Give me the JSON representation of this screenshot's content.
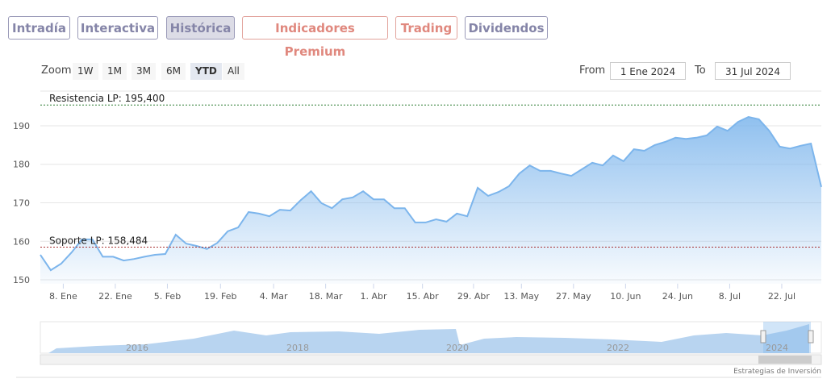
{
  "tabs": [
    "Intradía",
    "Interactiva",
    "Histórica",
    "Indicadores Premium",
    "Trading",
    "Dividendos"
  ],
  "active_tab": "Histórica",
  "zoom": {
    "label": "Zoom",
    "buttons": [
      "1W",
      "1M",
      "3M",
      "6M",
      "YTD",
      "All"
    ],
    "active": "YTD"
  },
  "range": {
    "from_label": "From",
    "from": "1 Ene 2024",
    "to_label": "To",
    "to": "31 Jul 2024"
  },
  "chart_data": {
    "type": "area",
    "color": "#7cb5ec",
    "values": [
      156.5,
      152.5,
      154.2,
      157.1,
      160.5,
      160.5,
      156,
      156,
      155,
      155.4,
      156,
      156.5,
      156.7,
      161.7,
      159.4,
      158.8,
      158,
      159.6,
      162.6,
      163.6,
      167.6,
      167.2,
      166.5,
      168.2,
      168,
      170.7,
      173,
      169.9,
      168.6,
      170.9,
      171.4,
      173,
      170.9,
      170.9,
      168.6,
      168.6,
      164.9,
      164.9,
      165.7,
      165.1,
      167.2,
      166.5,
      173.9,
      171.8,
      172.8,
      174.3,
      177.6,
      179.7,
      178.3,
      178.3,
      177.6,
      177,
      178.7,
      180.4,
      179.7,
      182.3,
      180.8,
      183.9,
      183.5,
      185,
      185.8,
      186.9,
      186.6,
      186.9,
      187.5,
      189.8,
      188.7,
      191,
      192.3,
      191.7,
      188.7,
      184.6,
      184.1,
      184.8,
      185.4,
      174.1
    ],
    "xlim": [
      0,
      75
    ],
    "xticks": [
      {
        "value": 2.2,
        "label": "8. Ene"
      },
      {
        "value": 7.2,
        "label": "22. Ene"
      },
      {
        "value": 12.2,
        "label": "5. Feb"
      },
      {
        "value": 17.3,
        "label": "19. Feb"
      },
      {
        "value": 22.4,
        "label": "4. Mar"
      },
      {
        "value": 27.4,
        "label": "18. Mar"
      },
      {
        "value": 32.0,
        "label": "1. Abr"
      },
      {
        "value": 36.7,
        "label": "15. Abr"
      },
      {
        "value": 41.6,
        "label": "29. Abr"
      },
      {
        "value": 46.2,
        "label": "13. May"
      },
      {
        "value": 51.2,
        "label": "27. May"
      },
      {
        "value": 56.2,
        "label": "10. Jun"
      },
      {
        "value": 61.2,
        "label": "24. Jun"
      },
      {
        "value": 66.2,
        "label": "8. Jul"
      },
      {
        "value": 71.2,
        "label": "22. Jul"
      }
    ],
    "ylim": [
      149,
      199
    ],
    "yticks": [
      150,
      160,
      170,
      180,
      190
    ],
    "grid": true,
    "annotations": [
      {
        "label": "Resistencia LP: 195,400",
        "value": 195.4,
        "color": "#2e7d32"
      },
      {
        "label": "Soporte LP: 158,484",
        "value": 158.484,
        "color": "#a83232"
      }
    ]
  },
  "navigator": {
    "years": [
      "2016",
      "2018",
      "2020",
      "2022",
      "2024"
    ]
  },
  "credit": "Estrategias de Inversión"
}
